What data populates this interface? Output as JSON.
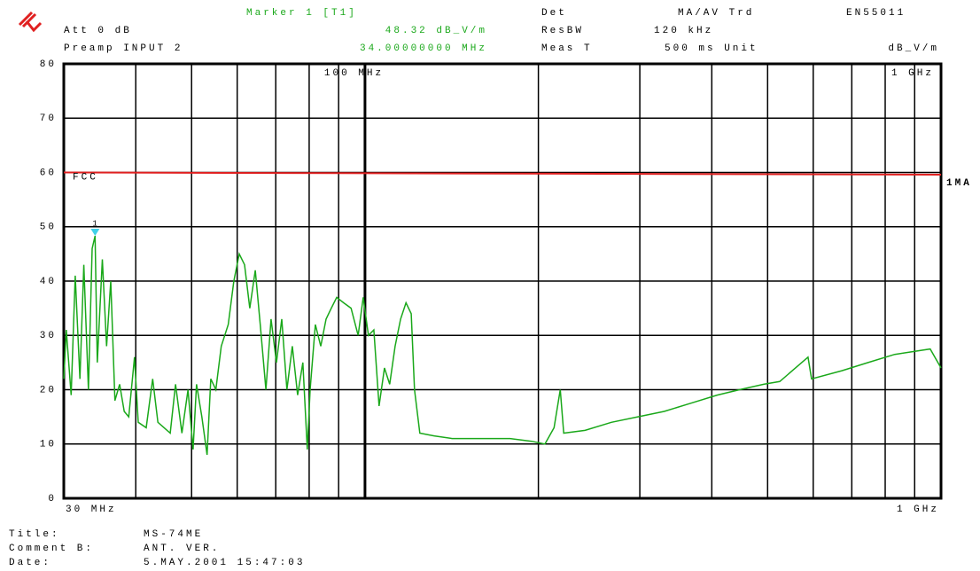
{
  "header": {
    "marker_title": "Marker 1 [T1]",
    "det_label": "Det",
    "det_value": "MA/AV Trd",
    "standard": "EN55011",
    "att": "Att 0 dB",
    "rbw_label": "ResBW",
    "rbw_value": "120 kHz",
    "preamp": "Preamp INPUT 2",
    "meas_label": "Meas T",
    "meas_value": "500 ms Unit",
    "unit": "dB_V/m"
  },
  "footer": {
    "title_label": "Title:",
    "title": "MS-74ME",
    "comment_label": "Comment B:",
    "comment": "ANT. VER.",
    "date_label": "Date:",
    "date": "5.MAY.2001 15:47:03"
  },
  "chart_data": {
    "type": "line",
    "xlog": true,
    "xlim": [
      30,
      1000
    ],
    "ylim": [
      0,
      80
    ],
    "yticks": [
      0,
      10,
      20,
      30,
      40,
      50,
      60,
      70,
      80
    ],
    "xticks": [
      {
        "value": 30,
        "label": "30 MHz"
      },
      {
        "value": 1000,
        "label": "1 GHz"
      }
    ],
    "top_xticks": [
      {
        "value": 100,
        "label": "100 MHz"
      },
      {
        "value": 1000,
        "label": "1 GHz"
      }
    ],
    "xgrid": [
      40,
      50,
      60,
      70,
      80,
      90,
      100,
      200,
      300,
      400,
      500,
      600,
      700,
      800,
      900,
      1000
    ],
    "xgrid_bold": [
      100
    ],
    "grid": true,
    "series": [
      {
        "name": "1MA",
        "color": "#1aa81a",
        "x": [
          30.0,
          30.3,
          30.9,
          31.4,
          32.0,
          32.5,
          33.1,
          33.6,
          34.0,
          34.3,
          35.0,
          35.6,
          36.2,
          36.8,
          37.5,
          38.2,
          38.9,
          39.8,
          40.4,
          41.7,
          42.8,
          43.7,
          44.8,
          45.9,
          46.9,
          48.1,
          49.3,
          50.3,
          51.0,
          52.1,
          53.2,
          54.0,
          55.1,
          56.3,
          57.9,
          59.2,
          60.5,
          61.8,
          63.1,
          64.5,
          65.8,
          67.3,
          68.7,
          70.2,
          71.7,
          73.2,
          74.8,
          76.4,
          78.0,
          79.4,
          80.3,
          82.0,
          83.8,
          85.6,
          87.4,
          89.3,
          91.8,
          94.6,
          97.3,
          99.3,
          101.4,
          103.6,
          105.8,
          108.1,
          110.4,
          112.8,
          115.3,
          117.8,
          120.3,
          121.9,
          124.5,
          131.8,
          141.7,
          152.1,
          163.3,
          178.6,
          194.7,
          205.3,
          212.9,
          218.3,
          221.3,
          241.0,
          267.8,
          297.7,
          330.7,
          367.6,
          408.7,
          447.0,
          492.2,
          524.9,
          587.6,
          596.0,
          672.7,
          747.1,
          830.8,
          957.6,
          1000
        ],
        "values": [
          22,
          31,
          19,
          41,
          22,
          43,
          20,
          46,
          48.32,
          25,
          44,
          28,
          40,
          18,
          21,
          16,
          15,
          26,
          14,
          13,
          22,
          14,
          13,
          12,
          21,
          12,
          20,
          9,
          21,
          15,
          8,
          22,
          20,
          28,
          32,
          40,
          45,
          43,
          35,
          42,
          32,
          20,
          33,
          25,
          33,
          20,
          28,
          19,
          25,
          9,
          20,
          32,
          28,
          33,
          35,
          37,
          36,
          35,
          30,
          37,
          30,
          31,
          17,
          24,
          21,
          28,
          33,
          36,
          34,
          20,
          12,
          11.5,
          11,
          11,
          11,
          11,
          10.5,
          10,
          13,
          20,
          12,
          12.5,
          14,
          15,
          16,
          17.5,
          19,
          20,
          21,
          21.5,
          26,
          22,
          23.5,
          25,
          26.5,
          27.5,
          24
        ]
      }
    ],
    "limit_line": {
      "name": "FCC",
      "color": "#e02020",
      "x": [
        30,
        1000
      ],
      "values": [
        60,
        59.6
      ]
    },
    "marker": {
      "label": "1",
      "color": "#40d0e8",
      "x": 34,
      "y": 48.32,
      "y_label": "48.32 dB_V/m",
      "x_label": "34.00000000 MHz"
    }
  }
}
